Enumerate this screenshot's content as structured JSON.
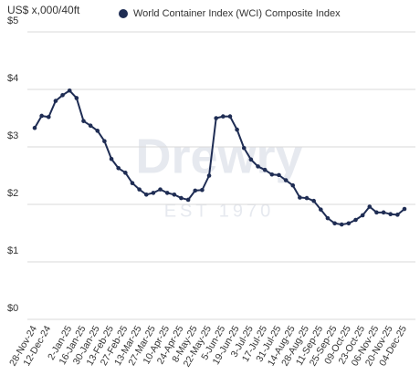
{
  "chart_data": {
    "type": "line",
    "y_axis_label": "US$ x,000/40ft",
    "watermark": "Drewry",
    "watermark_sub": "EST 1970",
    "categories": [
      "28-Nov-24",
      null,
      "12-Dec-24",
      null,
      null,
      "2-Jan-25",
      null,
      "16-Jan-25",
      null,
      "30-Jan-25",
      null,
      "13-Feb-25",
      null,
      "27-Feb-25",
      null,
      "13-Mar-25",
      null,
      "27-Mar-25",
      null,
      "10-Apr-25",
      null,
      "24-Apr-25",
      null,
      "8-May-25",
      null,
      "22-May-25",
      null,
      "5-Jun-25",
      null,
      "19-Jun-25",
      null,
      "3-Jul-25",
      null,
      "17-Jul-25",
      null,
      "31-Jul-25",
      null,
      "14-Aug-25",
      null,
      "28-Aug-25",
      null,
      "11-Sep-25",
      null,
      "25-Sep-25",
      null,
      "09-Oct-25",
      null,
      "23-Oct-25",
      null,
      "06-Nov-25",
      null,
      "20-Nov-25",
      null,
      "04-Dec-25"
    ],
    "series": [
      {
        "name": "World Container Index (WCI) Composite Index",
        "color": "#1f2d54",
        "values": [
          3.33,
          3.54,
          3.52,
          3.8,
          3.9,
          3.98,
          3.85,
          3.45,
          3.37,
          3.28,
          3.1,
          2.79,
          2.63,
          2.55,
          2.37,
          2.26,
          2.17,
          2.2,
          2.26,
          2.2,
          2.17,
          2.11,
          2.08,
          2.24,
          2.25,
          2.5,
          3.5,
          3.53,
          3.53,
          3.3,
          2.98,
          2.78,
          2.66,
          2.6,
          2.52,
          2.51,
          2.42,
          2.33,
          2.12,
          2.11,
          2.06,
          1.91,
          1.76,
          1.67,
          1.65,
          1.67,
          1.73,
          1.81,
          1.96,
          1.86,
          1.86,
          1.83,
          1.82,
          1.92
        ]
      }
    ],
    "ylim": [
      0,
      5
    ],
    "yticks": [
      {
        "value": 0,
        "label": "$0"
      },
      {
        "value": 1,
        "label": "$1"
      },
      {
        "value": 2,
        "label": "$2"
      },
      {
        "value": 3,
        "label": "$3"
      },
      {
        "value": 4,
        "label": "$4"
      },
      {
        "value": 5,
        "label": "$5"
      }
    ],
    "grid": true,
    "legend": "top"
  }
}
